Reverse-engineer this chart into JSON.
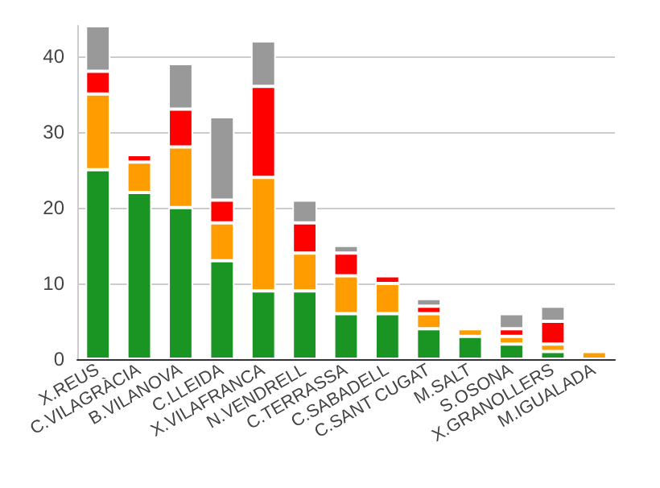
{
  "chart_data": {
    "type": "bar",
    "stacked": true,
    "categories": [
      "X.REUS",
      "C.VILAGRÀCIA",
      "B.VILANOVA",
      "C.LLEIDA",
      "X.VILAFRANCA",
      "N.VENDRELL",
      "C.TERRASSA",
      "C.SABADELL",
      "C.SANT CUGAT",
      "M.SALT",
      "S.OSONA",
      "X.GRANOLLERS",
      "M.IGUALADA"
    ],
    "series": [
      {
        "color": "#1a9422",
        "values": [
          25,
          22,
          20,
          13,
          9,
          9,
          6,
          6,
          4,
          3,
          2,
          1,
          null
        ]
      },
      {
        "color": "#ff9c00",
        "values": [
          10,
          4,
          8,
          5,
          15,
          5,
          5,
          4,
          2,
          1,
          1,
          1,
          1
        ]
      },
      {
        "color": "#ff0000",
        "values": [
          3,
          1,
          5,
          3,
          12,
          4,
          3,
          1,
          1,
          null,
          1,
          3,
          null
        ]
      },
      {
        "color": "#999999",
        "values": [
          6,
          null,
          6,
          11,
          6,
          3,
          1,
          null,
          1,
          null,
          2,
          2,
          null
        ]
      }
    ],
    "ylim": [
      0,
      44
    ],
    "yticks": [
      0,
      10,
      20,
      30,
      40
    ],
    "grid": "y"
  }
}
